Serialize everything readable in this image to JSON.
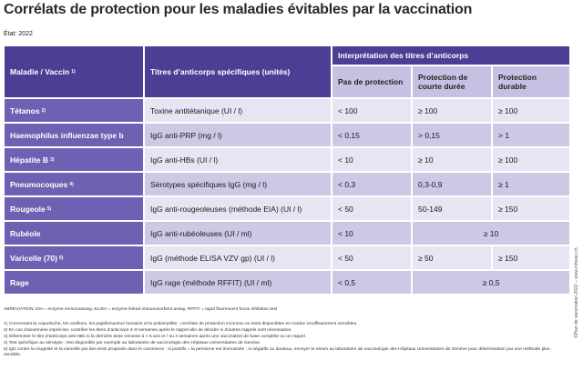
{
  "title": "Corrélats de protection pour les maladies évitables par la vaccination",
  "status": "État: 2022",
  "side_note": "©Plan de vaccination 2022 – www.infovac.ch",
  "header": {
    "disease": "Maladie / Vaccin",
    "disease_note": "1)",
    "antibody": "Titres d’anticorps spécifiques (unités)",
    "interpretation": "Interprétation des titres d’anticorps",
    "levels": [
      "Pas de protection",
      "Protection de courte durée",
      "Protection durable"
    ]
  },
  "rows": [
    {
      "disease": "Tétanos",
      "note": "2)",
      "antibody": "Toxine antitétanique (UI / l)",
      "cells": [
        "< 100",
        "≥ 100",
        "≥ 100"
      ]
    },
    {
      "disease": "Haemophilus influenzae type b",
      "note": null,
      "antibody": "IgG anti-PRP (mg / l)",
      "cells": [
        "< 0,15",
        "> 0,15",
        "> 1"
      ]
    },
    {
      "disease": "Hépatite B",
      "note": "3)",
      "antibody": "IgG anti-HBs (UI / l)",
      "cells": [
        "< 10",
        "≥ 10",
        "≥ 100"
      ]
    },
    {
      "disease": "Pneumocoques",
      "note": "4)",
      "antibody": "Sérotypes spécifiques IgG (mg / l)",
      "cells": [
        "< 0,3",
        "0,3-0,9",
        "≥ 1"
      ]
    },
    {
      "disease": "Rougeole",
      "note": "5)",
      "antibody": "IgG anti-rougeoleuses (méthode EIA) (UI / l)",
      "cells": [
        "< 50",
        "50-149",
        "≥ 150"
      ]
    },
    {
      "disease": "Rubéole",
      "note": null,
      "antibody": "IgG anti-rubéoleuses (UI / ml)",
      "cells": [
        "< 10",
        "≥ 10"
      ]
    },
    {
      "disease": "Varicelle (70)",
      "note": "5)",
      "antibody": "IgG (méthode ELISA VZV gp) (UI / l)",
      "cells": [
        "< 50",
        "≥ 50",
        "≥ 150"
      ]
    },
    {
      "disease": "Rage",
      "note": null,
      "antibody": "IgG rage (méthode RFFIT) (UI / ml)",
      "cells": [
        "< 0,5",
        "≥ 0,5"
      ]
    }
  ],
  "footnotes": [
    "ABREVIATION: EIA = enzyme immunoassay, ELISA = enzyme-linked immunosorbent assay, RFFIT = rapid fluorescent focus inhibition test",
    "1) Concernant la coqueluche, les oreillons, les papillomavirus humains et la poliomyélite : corrélats de protection inconnus ou tests disponibles en routine insuffisamment sensibles.",
    "2) En cas d’anamnèse imprécise: contrôler les titres d’anticorps 4–8 semaines après le rappel afin de décider si d’autres rappels sont nécessaires.",
    "3) Déterminer le titre d’anticorps anti-HBs si la dernière dose remonte à < 5 ans et / ou 4 semaines après une vaccination de base complète ou un rappel.",
    "4) Test spécifique au sérotype : test disponible par exemple au laboratoire de vaccinologie des Hôpitaux Universitaires de Genève.",
    "5) IgG contre la rougeole et la varicelle par des tests proposés dans le commerce : si positifs = la personne est immunisée ; si négatifs ou douteux, envoyer le sérum au laboratoire de vaccinologie des Hôpitaux Universitaires de Genève pour détermination par une méthode plus sensible."
  ]
}
